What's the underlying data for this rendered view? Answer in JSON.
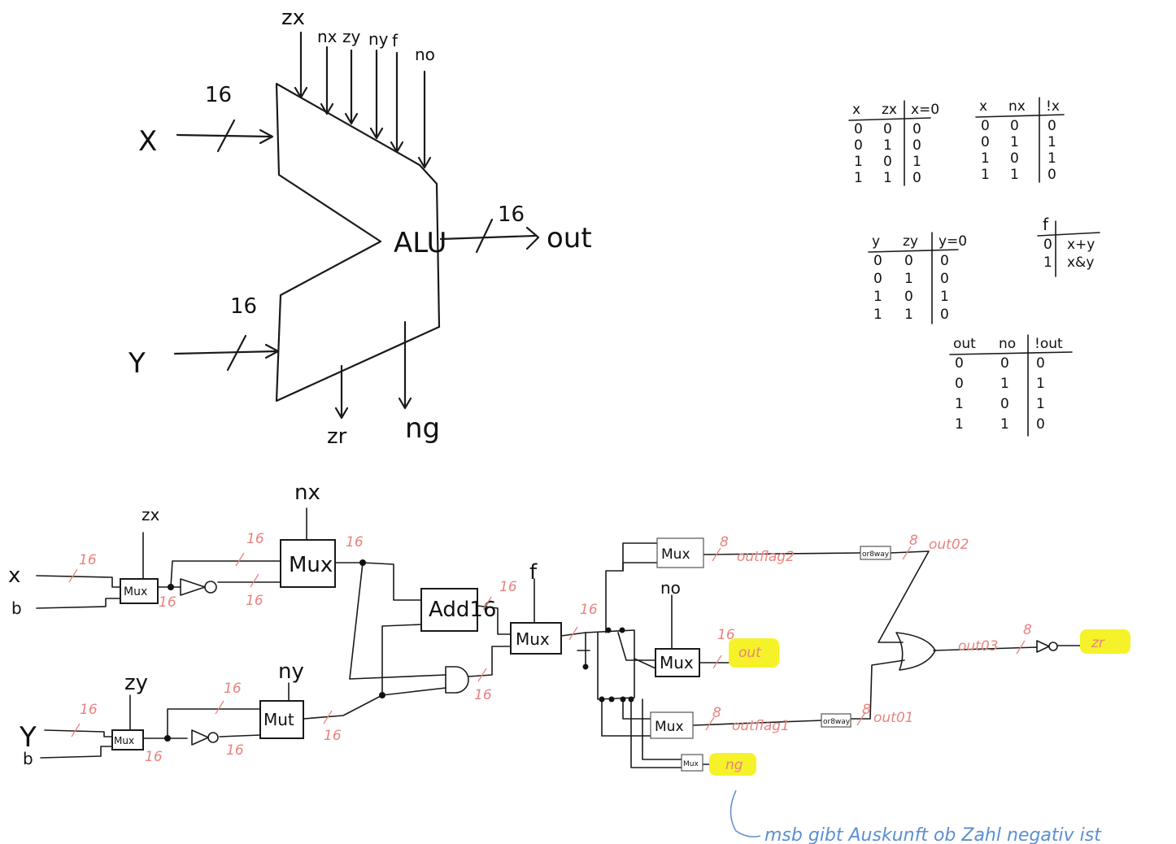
{
  "alu_block": {
    "label": "ALU",
    "control_inputs": [
      "zx",
      "nx",
      "zy",
      "ny",
      "f",
      "no"
    ],
    "input_x": "X",
    "input_y": "Y",
    "bus_width_x": "16",
    "bus_width_y": "16",
    "bus_width_out": "16",
    "output": "out",
    "flag_zr": "zr",
    "flag_ng": "ng"
  },
  "truth_tables": {
    "zx": {
      "headers": [
        "x",
        "zx",
        "x=0"
      ],
      "rows": [
        [
          "0",
          "0",
          "0"
        ],
        [
          "0",
          "1",
          "0"
        ],
        [
          "1",
          "0",
          "1"
        ],
        [
          "1",
          "1",
          "0"
        ]
      ]
    },
    "nx": {
      "headers": [
        "x",
        "nx",
        "!x"
      ],
      "rows": [
        [
          "0",
          "0",
          "0"
        ],
        [
          "0",
          "1",
          "1"
        ],
        [
          "1",
          "0",
          "1"
        ],
        [
          "1",
          "1",
          "0"
        ]
      ]
    },
    "zy": {
      "headers": [
        "y",
        "zy",
        "y=0"
      ],
      "rows": [
        [
          "0",
          "0",
          "0"
        ],
        [
          "0",
          "1",
          "0"
        ],
        [
          "1",
          "0",
          "1"
        ],
        [
          "1",
          "1",
          "0"
        ]
      ]
    },
    "f": {
      "header": "f",
      "rows": [
        [
          "0",
          "x+y"
        ],
        [
          "1",
          "x&y"
        ]
      ]
    },
    "no": {
      "headers": [
        "out",
        "no",
        "!out"
      ],
      "rows": [
        [
          "0",
          "0",
          "0"
        ],
        [
          "0",
          "1",
          "1"
        ],
        [
          "1",
          "0",
          "1"
        ],
        [
          "1",
          "1",
          "0"
        ]
      ]
    }
  },
  "circuit": {
    "inputs": {
      "x": "x",
      "b_top": "b",
      "y": "Y",
      "b_bottom": "b"
    },
    "controls": {
      "zx": "zx",
      "nx": "nx",
      "zy": "zy",
      "ny": "ny",
      "f": "f",
      "no": "no"
    },
    "gates": {
      "mux": "Mux",
      "mut": "Mut",
      "add": "Add16",
      "or8way": "or8way"
    },
    "widths": {
      "w16": "16",
      "w8": "8"
    },
    "signals": {
      "outflag2": "outflag2",
      "outflag1": "outflag1",
      "out02": "out02",
      "out01": "out01",
      "out03": "out03",
      "out": "out",
      "ng": "ng",
      "zr": "zr"
    },
    "note": "msb gibt Auskunft ob Zahl negativ ist"
  }
}
